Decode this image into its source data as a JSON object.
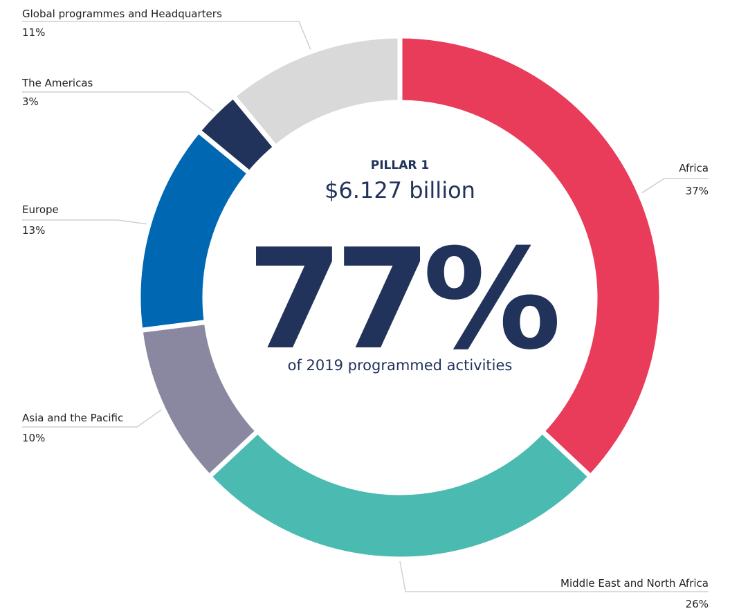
{
  "chart_data": {
    "type": "donut",
    "categories": [
      "Africa",
      "Middle East and North Africa",
      "Asia and the Pacific",
      "Europe",
      "The Americas",
      "Global programmes and Headquarters"
    ],
    "values": [
      37,
      26,
      10,
      13,
      3,
      11
    ],
    "value_labels": [
      "37%",
      "26%",
      "10%",
      "13%",
      "3%",
      "11%"
    ],
    "colors": [
      "#e83c5a",
      "#4bbab0",
      "#8a87a0",
      "#0068b3",
      "#22335b",
      "#d9d9d9"
    ],
    "center": {
      "kicker": "PILLAR 1",
      "amount": "$6.127 billion",
      "share": "77%",
      "caption": "of 2019 programmed activities"
    }
  }
}
